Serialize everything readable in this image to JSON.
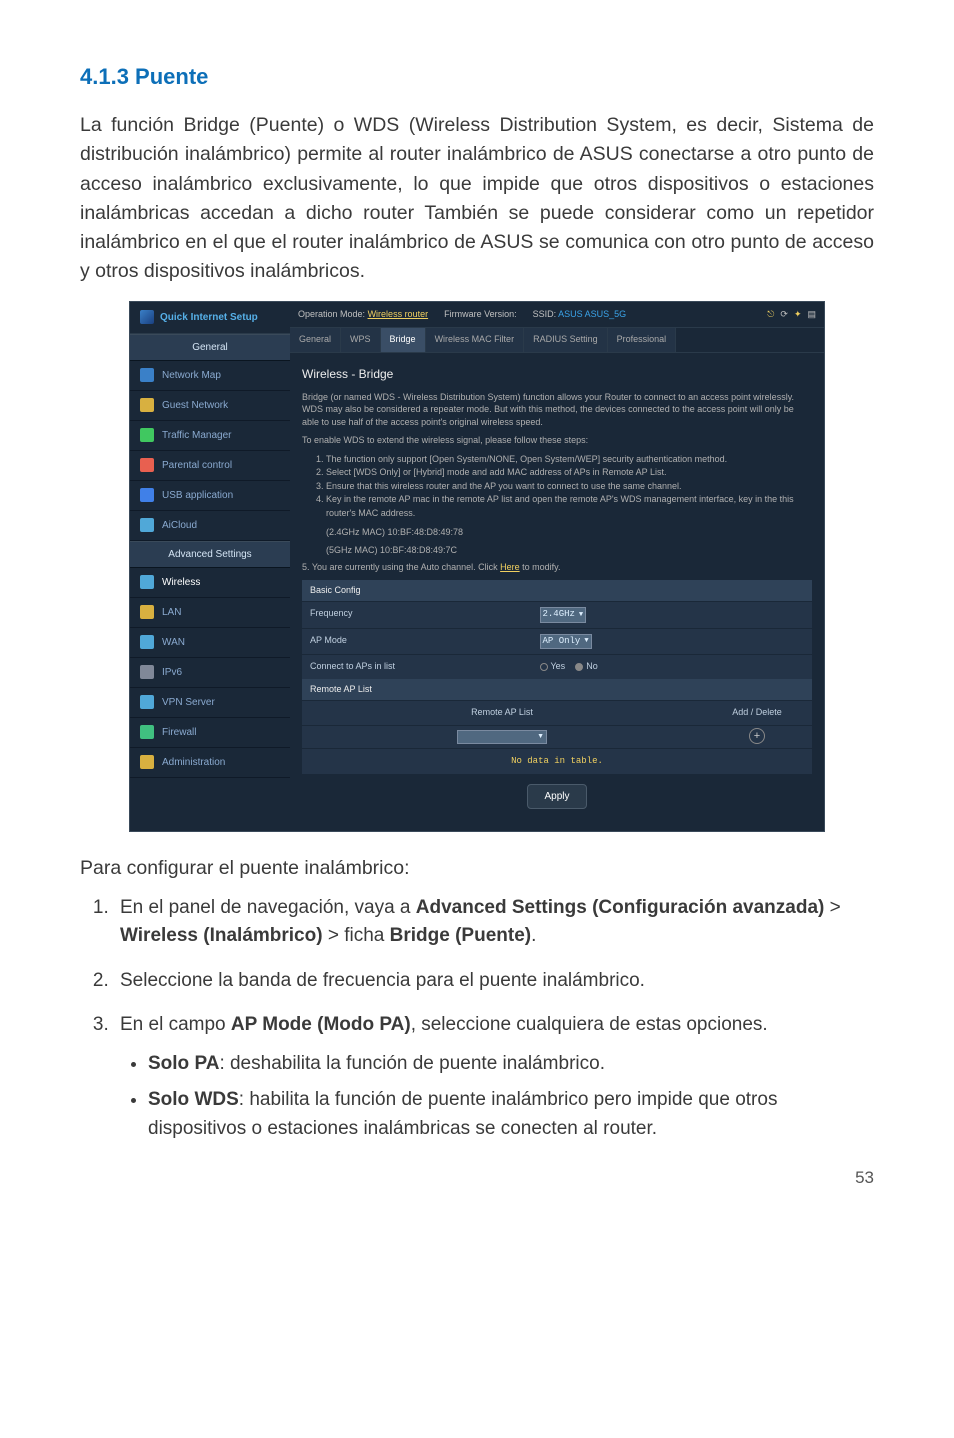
{
  "heading": "4.1.3  Puente",
  "paragraph": "La función Bridge (Puente) o WDS (Wireless Distribution System, es decir, Sistema de distribución inalámbrico) permite al router inalámbrico de ASUS conectarse a otro punto de acceso inalámbrico exclusivamente, lo que impide que otros dispositivos o estaciones inalámbricas accedan a dicho router También se puede considerar como un repetidor inalámbrico en el que el router inalámbrico de ASUS se comunica con otro punto de acceso y otros dispositivos inalámbricos.",
  "screenshot": {
    "qis_label": "Quick Internet Setup",
    "sidebar": {
      "general_header": "General",
      "items_general": [
        {
          "icon_color": "#3a80c8",
          "label": "Network Map"
        },
        {
          "icon_color": "#d8b040",
          "label": "Guest Network"
        },
        {
          "icon_color": "#40c860",
          "label": "Traffic Manager"
        },
        {
          "icon_color": "#e86050",
          "label": "Parental control"
        },
        {
          "icon_color": "#4080e8",
          "label": "USB application"
        },
        {
          "icon_color": "#50a8d8",
          "label": "AiCloud"
        }
      ],
      "advanced_header": "Advanced Settings",
      "items_advanced": [
        {
          "icon_color": "#50a8d8",
          "label": "Wireless",
          "active": true
        },
        {
          "icon_color": "#d8b040",
          "label": "LAN"
        },
        {
          "icon_color": "#50a8d8",
          "label": "WAN"
        },
        {
          "icon_color": "#808898",
          "label": "IPv6"
        },
        {
          "icon_color": "#50a8d8",
          "label": "VPN Server"
        },
        {
          "icon_color": "#40c080",
          "label": "Firewall"
        },
        {
          "icon_color": "#d8b040",
          "label": "Administration"
        }
      ]
    },
    "opbar": {
      "mode_label": "Operation Mode:",
      "mode_value": "Wireless router",
      "fw_label": "Firmware Version:",
      "ssid_label": "SSID:",
      "ssid_value": "ASUS  ASUS_5G"
    },
    "tabs": [
      "General",
      "WPS",
      "Bridge",
      "Wireless MAC Filter",
      "RADIUS Setting",
      "Professional"
    ],
    "active_tab": 2,
    "panel": {
      "title": "Wireless - Bridge",
      "desc1": "Bridge (or named WDS - Wireless Distribution System) function allows your Router to connect to an access point wirelessly. WDS may also be considered a repeater mode. But with this method, the devices connected to the access point will only be able to use half of the access point's original wireless speed.",
      "desc2": "To enable WDS to extend the wireless signal, please follow these steps:",
      "ol": [
        "The function only support [Open System/NONE, Open System/WEP] security authentication method.",
        "Select [WDS Only] or [Hybrid] mode and add MAC address of APs in Remote AP List.",
        "Ensure that this wireless router and the AP you want to connect to use the same channel.",
        "Key in the remote AP mac in the remote AP list and open the remote AP's WDS management interface, key in the this router's MAC address."
      ],
      "mac1": "(2.4GHz MAC) 10:BF:48:D8:49:78",
      "mac2": "(5GHz MAC) 10:BF:48:D8:49:7C",
      "auto_line_a": "5. You are currently using the Auto channel. Click ",
      "auto_line_link": "Here",
      "auto_line_b": " to modify.",
      "basic_config": "Basic Config",
      "rows": {
        "freq_label": "Frequency",
        "freq_value": "2.4GHz",
        "apmode_label": "AP Mode",
        "apmode_value": "AP Only",
        "connect_label": "Connect to APs in list",
        "connect_yes": "Yes",
        "connect_no": "No"
      },
      "remote_header": "Remote AP List",
      "remote_col1": "Remote AP List",
      "remote_col2": "Add / Delete",
      "nodata": "No data in table.",
      "apply": "Apply"
    }
  },
  "intro": "Para configurar el puente inalámbrico:",
  "steps": {
    "s1a": "En el panel de navegación, vaya a ",
    "s1b": "Advanced Settings (Configuración avanzada)",
    "s1c": " > ",
    "s1d": "Wireless (Inalámbrico)",
    "s1e": " > ficha ",
    "s1f": "Bridge (Puente)",
    "s1g": ".",
    "s2": "Seleccione la banda de frecuencia para el puente inalámbrico.",
    "s3a": "En el campo ",
    "s3b": "AP Mode (Modo PA)",
    "s3c": ", seleccione cualquiera de estas opciones.",
    "b1a": "Solo PA",
    "b1b": ": deshabilita la función de puente inalámbrico.",
    "b2a": "Solo WDS",
    "b2b": ": habilita la función de puente inalámbrico pero impide que otros dispositivos o estaciones inalámbricas se conecten al router."
  },
  "page_number": "53"
}
